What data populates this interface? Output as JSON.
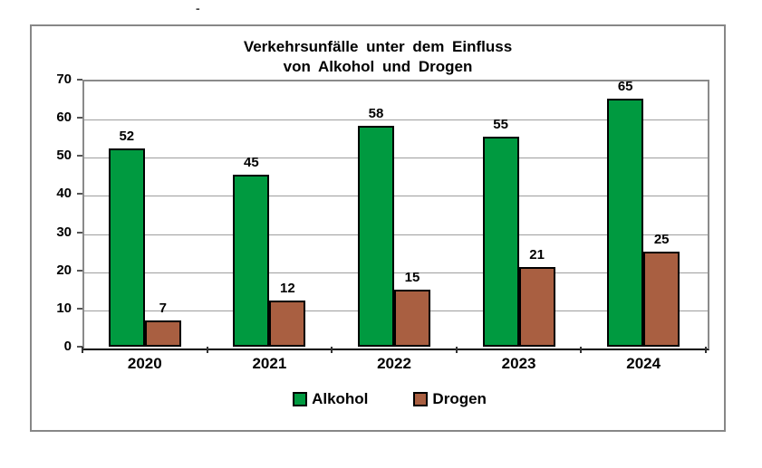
{
  "page": {
    "stray_mark": "-"
  },
  "chart": {
    "title_lines": [
      "Verkehrsunfälle unter dem Einfluss",
      "von Alkohol und Drogen"
    ]
  },
  "chart_data": {
    "type": "bar",
    "title": "Verkehrsunfälle unter dem Einfluss von Alkohol und Drogen",
    "categories": [
      "2020",
      "2021",
      "2022",
      "2023",
      "2024"
    ],
    "series": [
      {
        "name": "Alkohol",
        "color": "#009a40",
        "values": [
          52,
          45,
          58,
          55,
          65
        ]
      },
      {
        "name": "Drogen",
        "color": "#a95f41",
        "values": [
          7,
          12,
          15,
          21,
          25
        ]
      }
    ],
    "ylim": [
      0,
      70
    ],
    "yticks": [
      0,
      10,
      20,
      30,
      40,
      50,
      60,
      70
    ],
    "xlabel": "",
    "ylabel": "",
    "grid": true,
    "bar_value_labels": true,
    "legend_position": "bottom",
    "colors": {
      "frame_border": "#878787",
      "plot_border": "#8a8a8a",
      "gridline": "#9e9e9e",
      "axis_line": "#000000",
      "text": "#000000"
    }
  }
}
